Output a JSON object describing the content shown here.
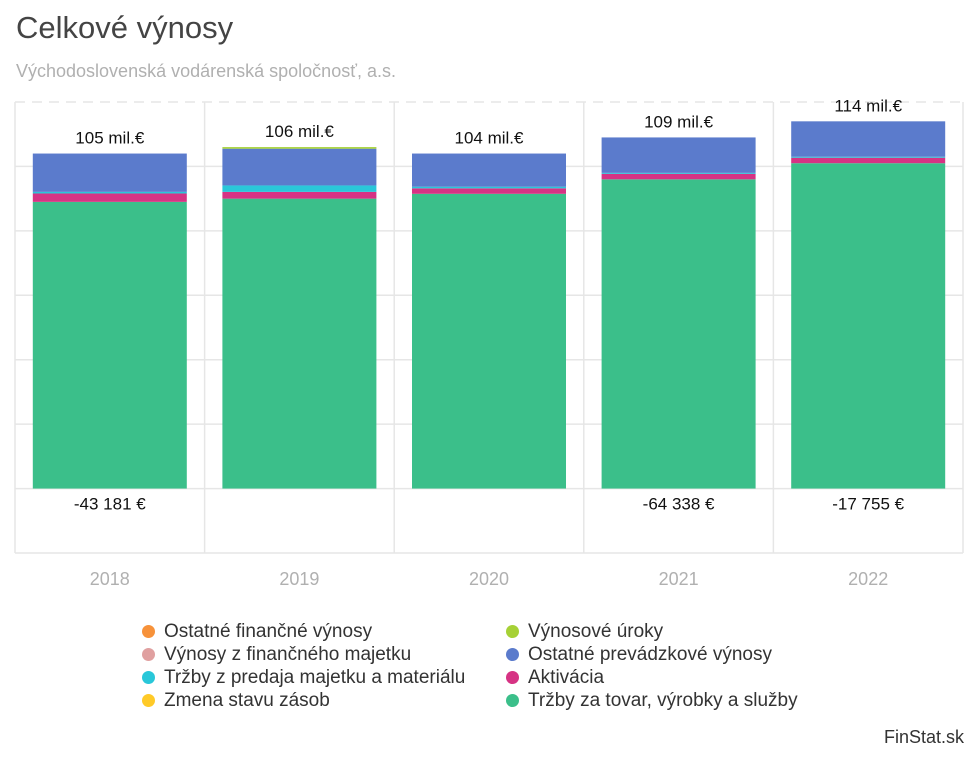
{
  "header": {
    "title": "Celkové výnosy",
    "subtitle": "Východoslovenská vodárenská spoločnosť, a.s."
  },
  "credit": "FinStat.sk",
  "colors": {
    "grid": "#e6e6e6",
    "axis_label": "#b0b0b0",
    "value_label": "#111111"
  },
  "chart_data": {
    "type": "bar",
    "stacked": true,
    "categories": [
      "2018",
      "2019",
      "2020",
      "2021",
      "2022"
    ],
    "ylim": [
      -20000000,
      120000000
    ],
    "grid": true,
    "legend_position": "bottom",
    "series": [
      {
        "name": "Tržby za tovar, výrobky a služby",
        "color": "#3bbf8a",
        "values": [
          89000000,
          90000000,
          91500000,
          96000000,
          101000000
        ]
      },
      {
        "name": "Aktivácia",
        "color": "#d63384",
        "values": [
          2600000,
          2100000,
          1700000,
          1700000,
          1700000
        ]
      },
      {
        "name": "Zmena stavu zásob",
        "color": "#ffca28",
        "values": [
          0,
          0,
          0,
          0,
          0
        ]
      },
      {
        "name": "Tržby z predaja majetku a materiálu",
        "color": "#29c7d9",
        "values": [
          500000,
          2000000,
          500000,
          300000,
          300000
        ]
      },
      {
        "name": "Ostatné prevádzkové výnosy",
        "color": "#5b7bcc",
        "values": [
          11900000,
          11400000,
          10300000,
          11000000,
          11000000
        ]
      },
      {
        "name": "Výnosy z finančného majetku",
        "color": "#e0a0a0",
        "values": [
          0,
          0,
          0,
          0,
          0
        ]
      },
      {
        "name": "Výnosové úroky",
        "color": "#a6d136",
        "values": [
          0,
          500000,
          0,
          0,
          0
        ]
      },
      {
        "name": "Ostatné finančné výnosy",
        "color": "#f7923a",
        "values": [
          0,
          0,
          0,
          0,
          0
        ]
      }
    ],
    "total_labels": [
      "105 mil.€",
      "106 mil.€",
      "104 mil.€",
      "109 mil.€",
      "114 mil.€"
    ],
    "negative_values": [
      -43181,
      0,
      0,
      -64338,
      -17755
    ],
    "negative_labels": [
      "-43 181 €",
      "",
      "",
      "-64 338 €",
      "-17 755 €"
    ]
  },
  "legend": {
    "items": [
      {
        "label": "Ostatné finančné výnosy",
        "color": "#f7923a"
      },
      {
        "label": "Výnosové úroky",
        "color": "#a6d136"
      },
      {
        "label": "Výnosy z finančného majetku",
        "color": "#e0a0a0"
      },
      {
        "label": "Ostatné prevádzkové výnosy",
        "color": "#5b7bcc"
      },
      {
        "label": "Tržby z predaja majetku a materiálu",
        "color": "#29c7d9"
      },
      {
        "label": "Aktivácia",
        "color": "#d63384"
      },
      {
        "label": "Zmena stavu zásob",
        "color": "#ffca28"
      },
      {
        "label": "Tržby za tovar, výrobky a služby",
        "color": "#3bbf8a"
      }
    ]
  }
}
